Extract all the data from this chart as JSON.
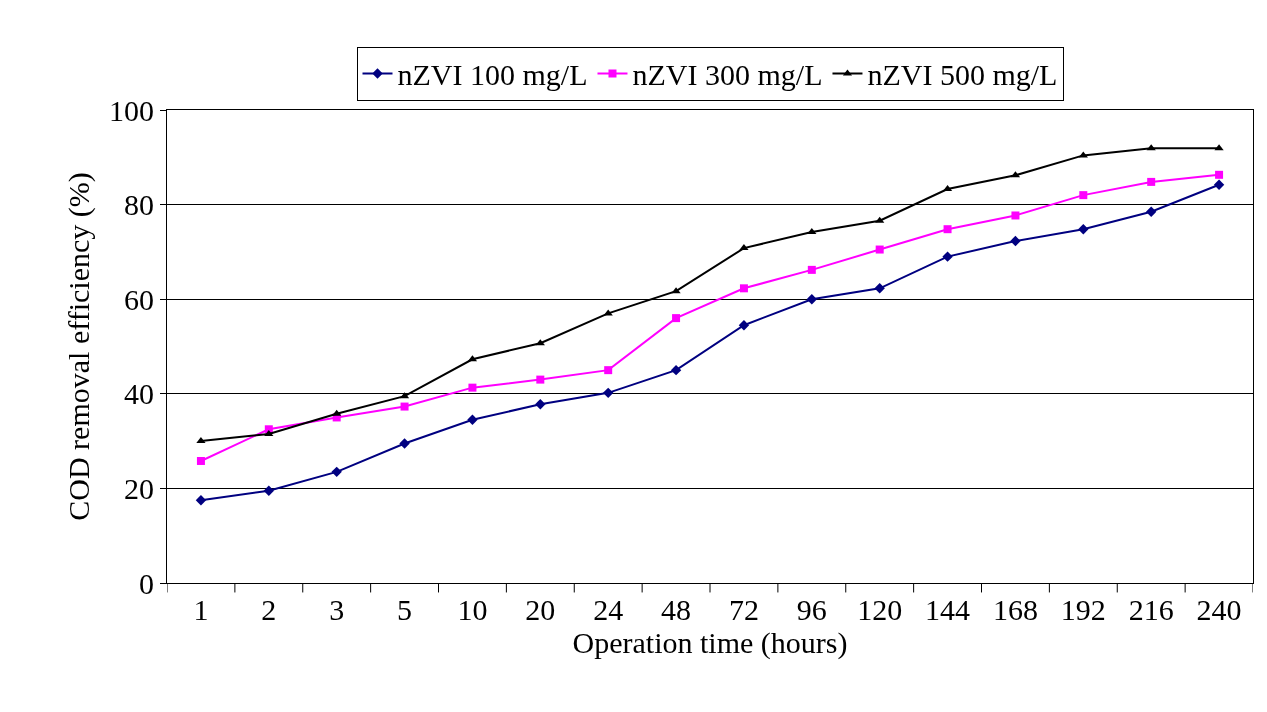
{
  "chart_data": {
    "type": "line",
    "xlabel": "Operation time (hours)",
    "ylabel": "COD removal efficiency (%)",
    "categories": [
      "1",
      "2",
      "3",
      "5",
      "10",
      "20",
      "24",
      "48",
      "72",
      "96",
      "120",
      "144",
      "168",
      "192",
      "216",
      "240"
    ],
    "series": [
      {
        "name": "nZVI 100 mg/L",
        "color": "#000080",
        "marker": "diamond",
        "values": [
          17.5,
          19.5,
          23.5,
          29.5,
          34.5,
          37.8,
          40.2,
          45,
          54.5,
          60,
          62.3,
          69,
          72.3,
          74.8,
          78.5,
          84.2
        ]
      },
      {
        "name": "nZVI 300 mg/L",
        "color": "#ff00ff",
        "marker": "square",
        "values": [
          25.8,
          32.5,
          35,
          37.3,
          41.3,
          43,
          45,
          56,
          62.3,
          66.2,
          70.5,
          74.8,
          77.7,
          82,
          84.8,
          86.3
        ]
      },
      {
        "name": "nZVI 500 mg/L",
        "color": "#000000",
        "marker": "triangle",
        "values": [
          30,
          31.5,
          35.8,
          39.5,
          47.3,
          50.7,
          57,
          61.7,
          70.8,
          74.2,
          76.6,
          83.3,
          86.2,
          90.4,
          91.9,
          91.9
        ]
      }
    ],
    "ylim": [
      0,
      100
    ],
    "yticks": [
      0,
      20,
      40,
      60,
      80,
      100
    ],
    "grid": "y",
    "legend": "top",
    "line_style": "solid"
  }
}
